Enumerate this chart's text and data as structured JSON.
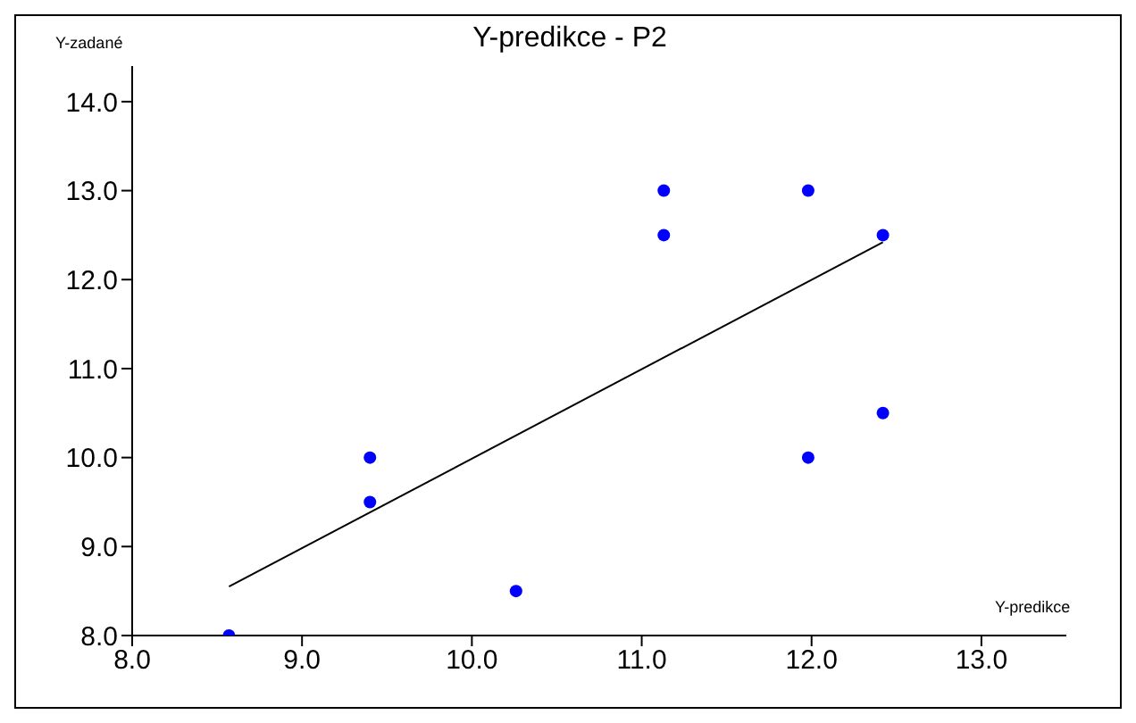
{
  "chart_data": {
    "type": "scatter",
    "title": "Y-predikce - P2",
    "xlabel": "Y-predikce",
    "ylabel": "Y-zadané",
    "xlim": [
      8,
      13.5
    ],
    "ylim": [
      8,
      14.4
    ],
    "xticks": [
      {
        "value": 8,
        "label": "8.0"
      },
      {
        "value": 9,
        "label": "9.0"
      },
      {
        "value": 10,
        "label": "10.0"
      },
      {
        "value": 11,
        "label": "11.0"
      },
      {
        "value": 12,
        "label": "12.0"
      },
      {
        "value": 13,
        "label": "13.0"
      }
    ],
    "yticks": [
      {
        "value": 8,
        "label": "8.0"
      },
      {
        "value": 9,
        "label": "9.0"
      },
      {
        "value": 10,
        "label": "10.0"
      },
      {
        "value": 11,
        "label": "11.0"
      },
      {
        "value": 12,
        "label": "12.0"
      },
      {
        "value": 13,
        "label": "13.0"
      },
      {
        "value": 14,
        "label": "14.0"
      }
    ],
    "grid": false,
    "marker": "circle",
    "series": [
      {
        "color": "#0000ff",
        "x": [
          8.57,
          9.4,
          9.4,
          10.26,
          11.13,
          11.13,
          11.98,
          11.98,
          12.42,
          12.42
        ],
        "values": [
          8.0,
          10.0,
          9.5,
          8.5,
          13.0,
          12.5,
          13.0,
          10.0,
          12.5,
          10.5
        ]
      },
      {
        "type": "line",
        "color": "#000000",
        "marker": "none",
        "x": [
          8.57,
          12.42
        ],
        "values": [
          8.55,
          12.42
        ]
      }
    ]
  }
}
